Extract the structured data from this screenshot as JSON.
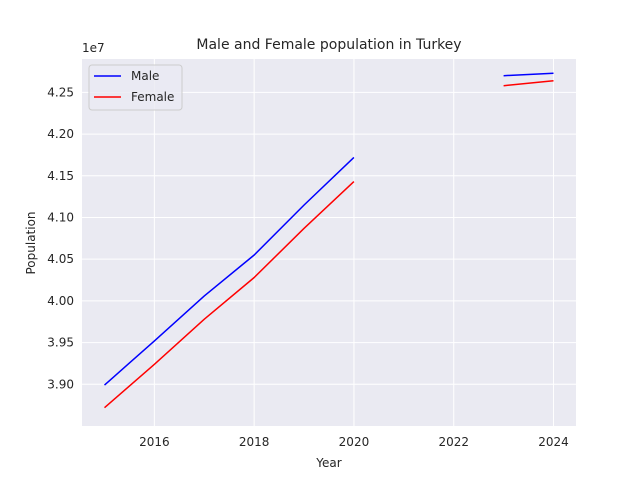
{
  "chart_data": {
    "type": "line",
    "title": "Male and Female population in Turkey",
    "xlabel": "Year",
    "ylabel": "Population",
    "y_offset_label": "1e7",
    "xlim": [
      2014.55,
      2024.45
    ],
    "ylim": [
      38.5,
      42.9
    ],
    "x_ticks": [
      2016,
      2018,
      2020,
      2022,
      2024
    ],
    "x_tick_labels": [
      "2016",
      "2018",
      "2020",
      "2022",
      "2024"
    ],
    "y_ticks": [
      39.0,
      39.5,
      40.0,
      40.5,
      41.0,
      41.5,
      42.0,
      42.5
    ],
    "y_tick_labels": [
      "3.90",
      "3.95",
      "4.00",
      "4.05",
      "4.10",
      "4.15",
      "4.20",
      "4.25"
    ],
    "grid": true,
    "legend_position": "upper-left",
    "series": [
      {
        "name": "Male",
        "color": "#0000ff",
        "segments": [
          {
            "x": [
              2015,
              2016,
              2017,
              2018,
              2019,
              2020
            ],
            "y": [
              38.99,
              39.52,
              40.06,
              40.55,
              41.15,
              41.72
            ]
          },
          {
            "x": [
              2023,
              2024
            ],
            "y": [
              42.7,
              42.73
            ]
          }
        ]
      },
      {
        "name": "Female",
        "color": "#ff0000",
        "segments": [
          {
            "x": [
              2015,
              2016,
              2017,
              2018,
              2019,
              2020
            ],
            "y": [
              38.72,
              39.24,
              39.78,
              40.28,
              40.87,
              41.43
            ]
          },
          {
            "x": [
              2023,
              2024
            ],
            "y": [
              42.58,
              42.64
            ]
          }
        ]
      }
    ]
  }
}
